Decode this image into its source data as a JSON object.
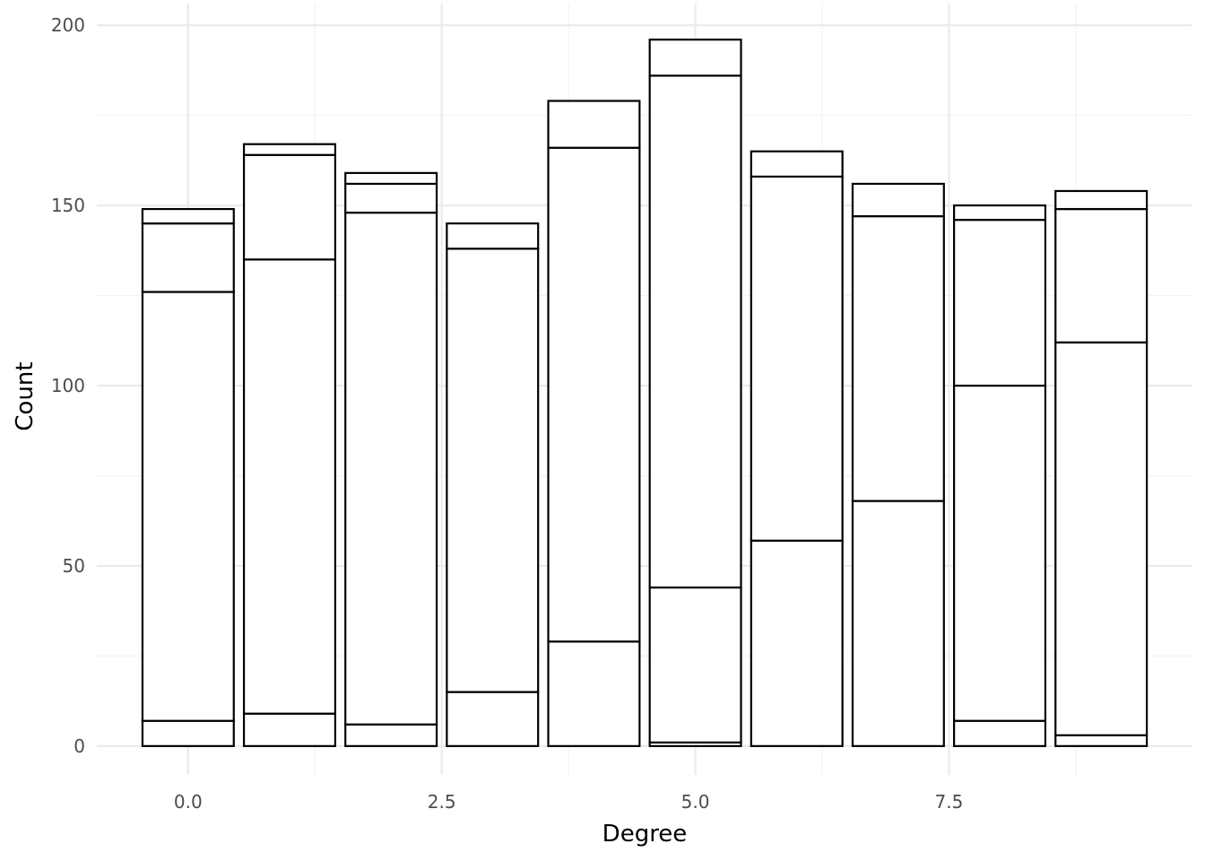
{
  "chart_data": {
    "type": "bar",
    "stacked": true,
    "title": "",
    "xlabel": "Degree",
    "ylabel": "Count",
    "xlim": [
      -0.9,
      9.9
    ],
    "ylim": [
      -8,
      206
    ],
    "x_ticks": [
      {
        "value": 0,
        "label": "0.0"
      },
      {
        "value": 2.5,
        "label": "2.5"
      },
      {
        "value": 5,
        "label": "5.0"
      },
      {
        "value": 7.5,
        "label": "7.5"
      }
    ],
    "y_ticks": [
      {
        "value": 0,
        "label": "0"
      },
      {
        "value": 50,
        "label": "50"
      },
      {
        "value": 100,
        "label": "100"
      },
      {
        "value": 150,
        "label": "150"
      },
      {
        "value": 200,
        "label": "200"
      }
    ],
    "grid": true,
    "legend": "none",
    "bars": [
      {
        "x": 0,
        "boundaries": [
          0,
          7,
          126,
          145,
          149
        ]
      },
      {
        "x": 1,
        "boundaries": [
          0,
          9,
          135,
          164,
          167
        ]
      },
      {
        "x": 2,
        "boundaries": [
          0,
          6,
          148,
          156,
          159
        ]
      },
      {
        "x": 3,
        "boundaries": [
          0,
          15,
          138,
          145
        ]
      },
      {
        "x": 4,
        "boundaries": [
          0,
          29,
          166,
          179
        ]
      },
      {
        "x": 5,
        "boundaries": [
          0,
          1,
          44,
          186,
          196
        ]
      },
      {
        "x": 6,
        "boundaries": [
          0,
          57,
          158,
          165
        ]
      },
      {
        "x": 7,
        "boundaries": [
          0,
          68,
          147,
          156
        ]
      },
      {
        "x": 8,
        "boundaries": [
          0,
          7,
          100,
          146,
          150
        ]
      },
      {
        "x": 9,
        "boundaries": [
          0,
          3,
          112,
          149,
          154
        ]
      }
    ]
  }
}
